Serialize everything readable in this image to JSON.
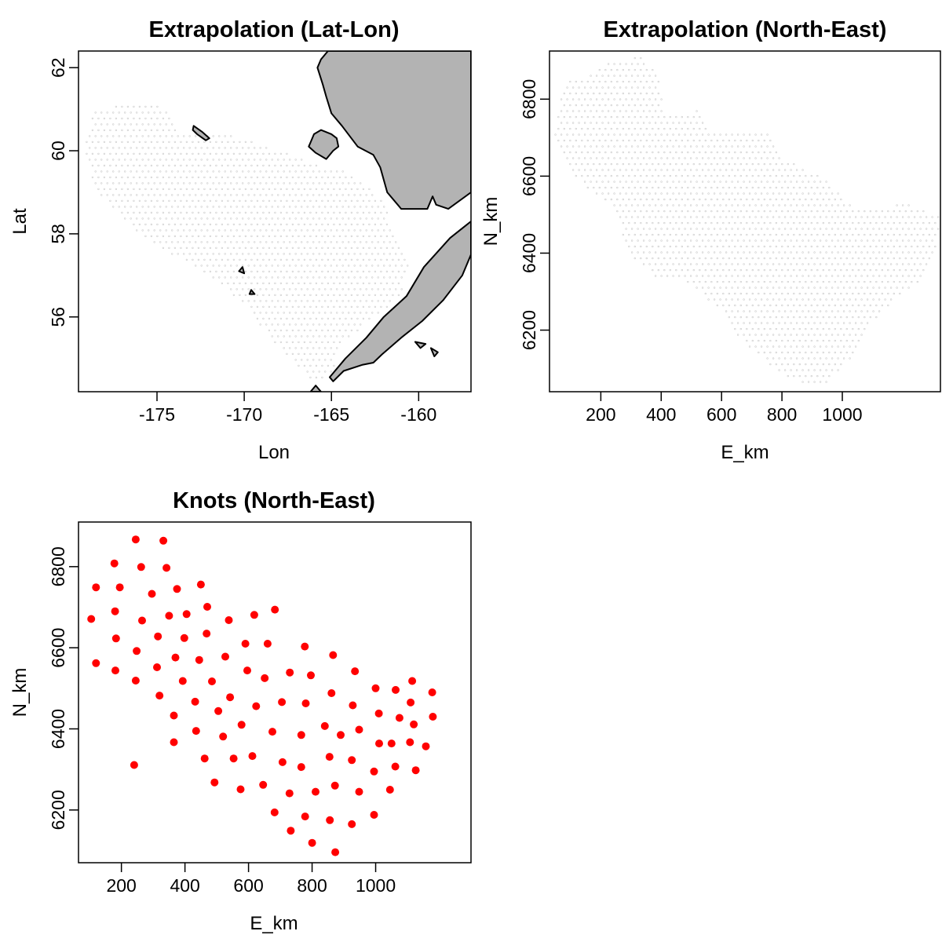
{
  "colors": {
    "land": "#b3b3b3",
    "extrapolation_points": "#c8c8c8",
    "knots": "#ff0000",
    "axis": "#000000"
  },
  "chart_data": [
    {
      "type": "scatter",
      "title": "Extrapolation (Lat-Lon)",
      "xlabel": "Lon",
      "ylabel": "Lat",
      "xlim": [
        -179.5,
        -157.0
      ],
      "ylim": [
        54.2,
        62.4
      ],
      "xticks": [
        "-175",
        "-170",
        "-165",
        "-160"
      ],
      "yticks": [
        "56",
        "58",
        "60",
        "62"
      ],
      "grid": false,
      "legend": "none",
      "region_outline": [
        [
          -178.6,
          61.0
        ],
        [
          -175.0,
          61.2
        ],
        [
          -173.5,
          60.4
        ],
        [
          -171.0,
          60.4
        ],
        [
          -168.0,
          60.0
        ],
        [
          -165.5,
          59.6
        ],
        [
          -164.0,
          59.5
        ],
        [
          -162.0,
          58.8
        ],
        [
          -161.5,
          58.0
        ],
        [
          -160.5,
          57.3
        ],
        [
          -161.0,
          56.5
        ],
        [
          -162.5,
          56.0
        ],
        [
          -164.5,
          55.3
        ],
        [
          -165.0,
          54.6
        ],
        [
          -166.0,
          54.4
        ],
        [
          -168.5,
          55.5
        ],
        [
          -170.0,
          56.3
        ],
        [
          -172.0,
          57.0
        ],
        [
          -174.5,
          57.6
        ],
        [
          -176.0,
          58.0
        ],
        [
          -178.5,
          59.0
        ],
        [
          -179.2,
          60.0
        ]
      ],
      "coast_polygons": [
        [
          [
            -164.0,
            62.4
          ],
          [
            -157.0,
            62.4
          ],
          [
            -157.0,
            59.0
          ],
          [
            -158.3,
            58.6
          ],
          [
            -159.0,
            58.7
          ],
          [
            -159.2,
            58.9
          ],
          [
            -159.5,
            58.6
          ],
          [
            -161.0,
            58.6
          ],
          [
            -161.8,
            59.0
          ],
          [
            -162.2,
            59.6
          ],
          [
            -162.6,
            59.9
          ],
          [
            -163.5,
            60.1
          ],
          [
            -164.4,
            60.6
          ],
          [
            -165.0,
            60.9
          ],
          [
            -165.3,
            61.3
          ],
          [
            -165.5,
            61.6
          ],
          [
            -165.8,
            62.0
          ],
          [
            -165.6,
            62.2
          ],
          [
            -165.2,
            62.4
          ]
        ],
        [
          [
            -166.2,
            60.2
          ],
          [
            -166.0,
            60.4
          ],
          [
            -165.6,
            60.5
          ],
          [
            -165.0,
            60.4
          ],
          [
            -164.7,
            60.3
          ],
          [
            -164.6,
            60.1
          ],
          [
            -164.9,
            60.0
          ],
          [
            -165.3,
            59.8
          ],
          [
            -165.9,
            59.95
          ],
          [
            -166.3,
            60.1
          ]
        ],
        [
          [
            -172.9,
            60.6
          ],
          [
            -172.4,
            60.45
          ],
          [
            -172.0,
            60.3
          ],
          [
            -172.2,
            60.25
          ],
          [
            -172.7,
            60.4
          ],
          [
            -172.95,
            60.5
          ]
        ],
        [
          [
            -170.1,
            57.2
          ],
          [
            -170.3,
            57.1
          ],
          [
            -170.0,
            57.05
          ]
        ],
        [
          [
            -169.6,
            56.65
          ],
          [
            -169.4,
            56.55
          ],
          [
            -169.7,
            56.55
          ]
        ],
        [
          [
            -157.0,
            57.5
          ],
          [
            -157.5,
            57.0
          ],
          [
            -158.6,
            56.4
          ],
          [
            -159.8,
            55.9
          ],
          [
            -161.0,
            55.5
          ],
          [
            -162.1,
            55.1
          ],
          [
            -162.6,
            54.9
          ],
          [
            -163.2,
            54.85
          ],
          [
            -164.3,
            54.7
          ],
          [
            -164.9,
            54.45
          ],
          [
            -165.1,
            54.55
          ],
          [
            -164.2,
            55.0
          ],
          [
            -163.0,
            55.5
          ],
          [
            -162.0,
            56.0
          ],
          [
            -160.7,
            56.5
          ],
          [
            -159.7,
            57.2
          ],
          [
            -158.2,
            57.9
          ],
          [
            -157.3,
            58.2
          ],
          [
            -157.0,
            58.3
          ]
        ],
        [
          [
            -160.2,
            55.4
          ],
          [
            -159.9,
            55.25
          ],
          [
            -159.6,
            55.35
          ]
        ],
        [
          [
            -159.3,
            55.25
          ],
          [
            -158.9,
            55.15
          ],
          [
            -159.1,
            55.05
          ]
        ],
        [
          [
            -165.9,
            54.35
          ],
          [
            -165.6,
            54.2
          ],
          [
            -166.2,
            54.2
          ]
        ]
      ]
    },
    {
      "type": "scatter",
      "title": "Extrapolation (North-East)",
      "xlabel": "E_km",
      "ylabel": "N_km",
      "xlim": [
        30,
        1325
      ],
      "ylim": [
        6040,
        6925
      ],
      "xticks": [
        "200",
        "400",
        "600",
        "800",
        "1000"
      ],
      "yticks": [
        "6200",
        "6400",
        "6600",
        "6800"
      ],
      "grid": false,
      "legend": "none",
      "region_outline": [
        [
          80,
          6840
        ],
        [
          150,
          6860
        ],
        [
          240,
          6900
        ],
        [
          330,
          6910
        ],
        [
          390,
          6870
        ],
        [
          410,
          6770
        ],
        [
          460,
          6760
        ],
        [
          520,
          6770
        ],
        [
          560,
          6710
        ],
        [
          650,
          6710
        ],
        [
          760,
          6710
        ],
        [
          800,
          6650
        ],
        [
          900,
          6610
        ],
        [
          960,
          6580
        ],
        [
          1030,
          6525
        ],
        [
          1100,
          6510
        ],
        [
          1200,
          6530
        ],
        [
          1320,
          6500
        ],
        [
          1320,
          6440
        ],
        [
          1290,
          6380
        ],
        [
          1250,
          6320
        ],
        [
          1180,
          6280
        ],
        [
          1100,
          6220
        ],
        [
          1050,
          6150
        ],
        [
          1000,
          6100
        ],
        [
          950,
          6060
        ],
        [
          880,
          6050
        ],
        [
          820,
          6080
        ],
        [
          760,
          6110
        ],
        [
          700,
          6150
        ],
        [
          650,
          6190
        ],
        [
          600,
          6250
        ],
        [
          520,
          6300
        ],
        [
          460,
          6330
        ],
        [
          380,
          6340
        ],
        [
          310,
          6380
        ],
        [
          270,
          6450
        ],
        [
          250,
          6510
        ],
        [
          180,
          6550
        ],
        [
          110,
          6600
        ],
        [
          70,
          6650
        ],
        [
          40,
          6700
        ]
      ]
    },
    {
      "type": "scatter",
      "title": "Knots (North-East)",
      "xlabel": "E_km",
      "ylabel": "N_km",
      "xlim": [
        65,
        1300
      ],
      "ylim": [
        6070,
        6910
      ],
      "xticks": [
        "200",
        "400",
        "600",
        "800",
        "1000"
      ],
      "yticks": [
        "6200",
        "6400",
        "6600",
        "6800"
      ],
      "grid": false,
      "legend": "none",
      "points": [
        [
          245,
          6867
        ],
        [
          332,
          6864
        ],
        [
          178,
          6808
        ],
        [
          262,
          6799
        ],
        [
          342,
          6797
        ],
        [
          120,
          6749
        ],
        [
          195,
          6749
        ],
        [
          296,
          6733
        ],
        [
          375,
          6745
        ],
        [
          450,
          6756
        ],
        [
          105,
          6671
        ],
        [
          180,
          6690
        ],
        [
          265,
          6667
        ],
        [
          350,
          6679
        ],
        [
          405,
          6683
        ],
        [
          470,
          6701
        ],
        [
          538,
          6668
        ],
        [
          618,
          6681
        ],
        [
          683,
          6694
        ],
        [
          183,
          6623
        ],
        [
          315,
          6628
        ],
        [
          398,
          6624
        ],
        [
          468,
          6635
        ],
        [
          590,
          6610
        ],
        [
          660,
          6610
        ],
        [
          777,
          6603
        ],
        [
          248,
          6592
        ],
        [
          370,
          6576
        ],
        [
          445,
          6570
        ],
        [
          527,
          6578
        ],
        [
          120,
          6562
        ],
        [
          181,
          6544
        ],
        [
          312,
          6552
        ],
        [
          596,
          6544
        ],
        [
          866,
          6582
        ],
        [
          935,
          6542
        ],
        [
          245,
          6519
        ],
        [
          393,
          6518
        ],
        [
          485,
          6517
        ],
        [
          651,
          6525
        ],
        [
          730,
          6539
        ],
        [
          796,
          6532
        ],
        [
          1000,
          6500
        ],
        [
          1063,
          6496
        ],
        [
          1115,
          6518
        ],
        [
          320,
          6482
        ],
        [
          432,
          6467
        ],
        [
          542,
          6478
        ],
        [
          624,
          6456
        ],
        [
          705,
          6466
        ],
        [
          780,
          6463
        ],
        [
          861,
          6488
        ],
        [
          928,
          6458
        ],
        [
          1010,
          6438
        ],
        [
          1110,
          6465
        ],
        [
          1178,
          6490
        ],
        [
          365,
          6433
        ],
        [
          505,
          6444
        ],
        [
          578,
          6410
        ],
        [
          675,
          6393
        ],
        [
          766,
          6385
        ],
        [
          840,
          6407
        ],
        [
          890,
          6385
        ],
        [
          948,
          6398
        ],
        [
          1075,
          6427
        ],
        [
          1120,
          6411
        ],
        [
          1180,
          6430
        ],
        [
          435,
          6395
        ],
        [
          520,
          6381
        ],
        [
          365,
          6367
        ],
        [
          1011,
          6364
        ],
        [
          1050,
          6364
        ],
        [
          1108,
          6367
        ],
        [
          1158,
          6357
        ],
        [
          240,
          6311
        ],
        [
          462,
          6327
        ],
        [
          553,
          6327
        ],
        [
          612,
          6333
        ],
        [
          707,
          6318
        ],
        [
          766,
          6306
        ],
        [
          855,
          6331
        ],
        [
          925,
          6323
        ],
        [
          995,
          6295
        ],
        [
          1062,
          6307
        ],
        [
          1126,
          6298
        ],
        [
          493,
          6268
        ],
        [
          575,
          6251
        ],
        [
          646,
          6262
        ],
        [
          729,
          6241
        ],
        [
          811,
          6245
        ],
        [
          872,
          6260
        ],
        [
          948,
          6245
        ],
        [
          1045,
          6250
        ],
        [
          682,
          6194
        ],
        [
          778,
          6184
        ],
        [
          856,
          6175
        ],
        [
          925,
          6165
        ],
        [
          995,
          6188
        ],
        [
          733,
          6149
        ],
        [
          800,
          6119
        ],
        [
          873,
          6096
        ]
      ]
    }
  ]
}
